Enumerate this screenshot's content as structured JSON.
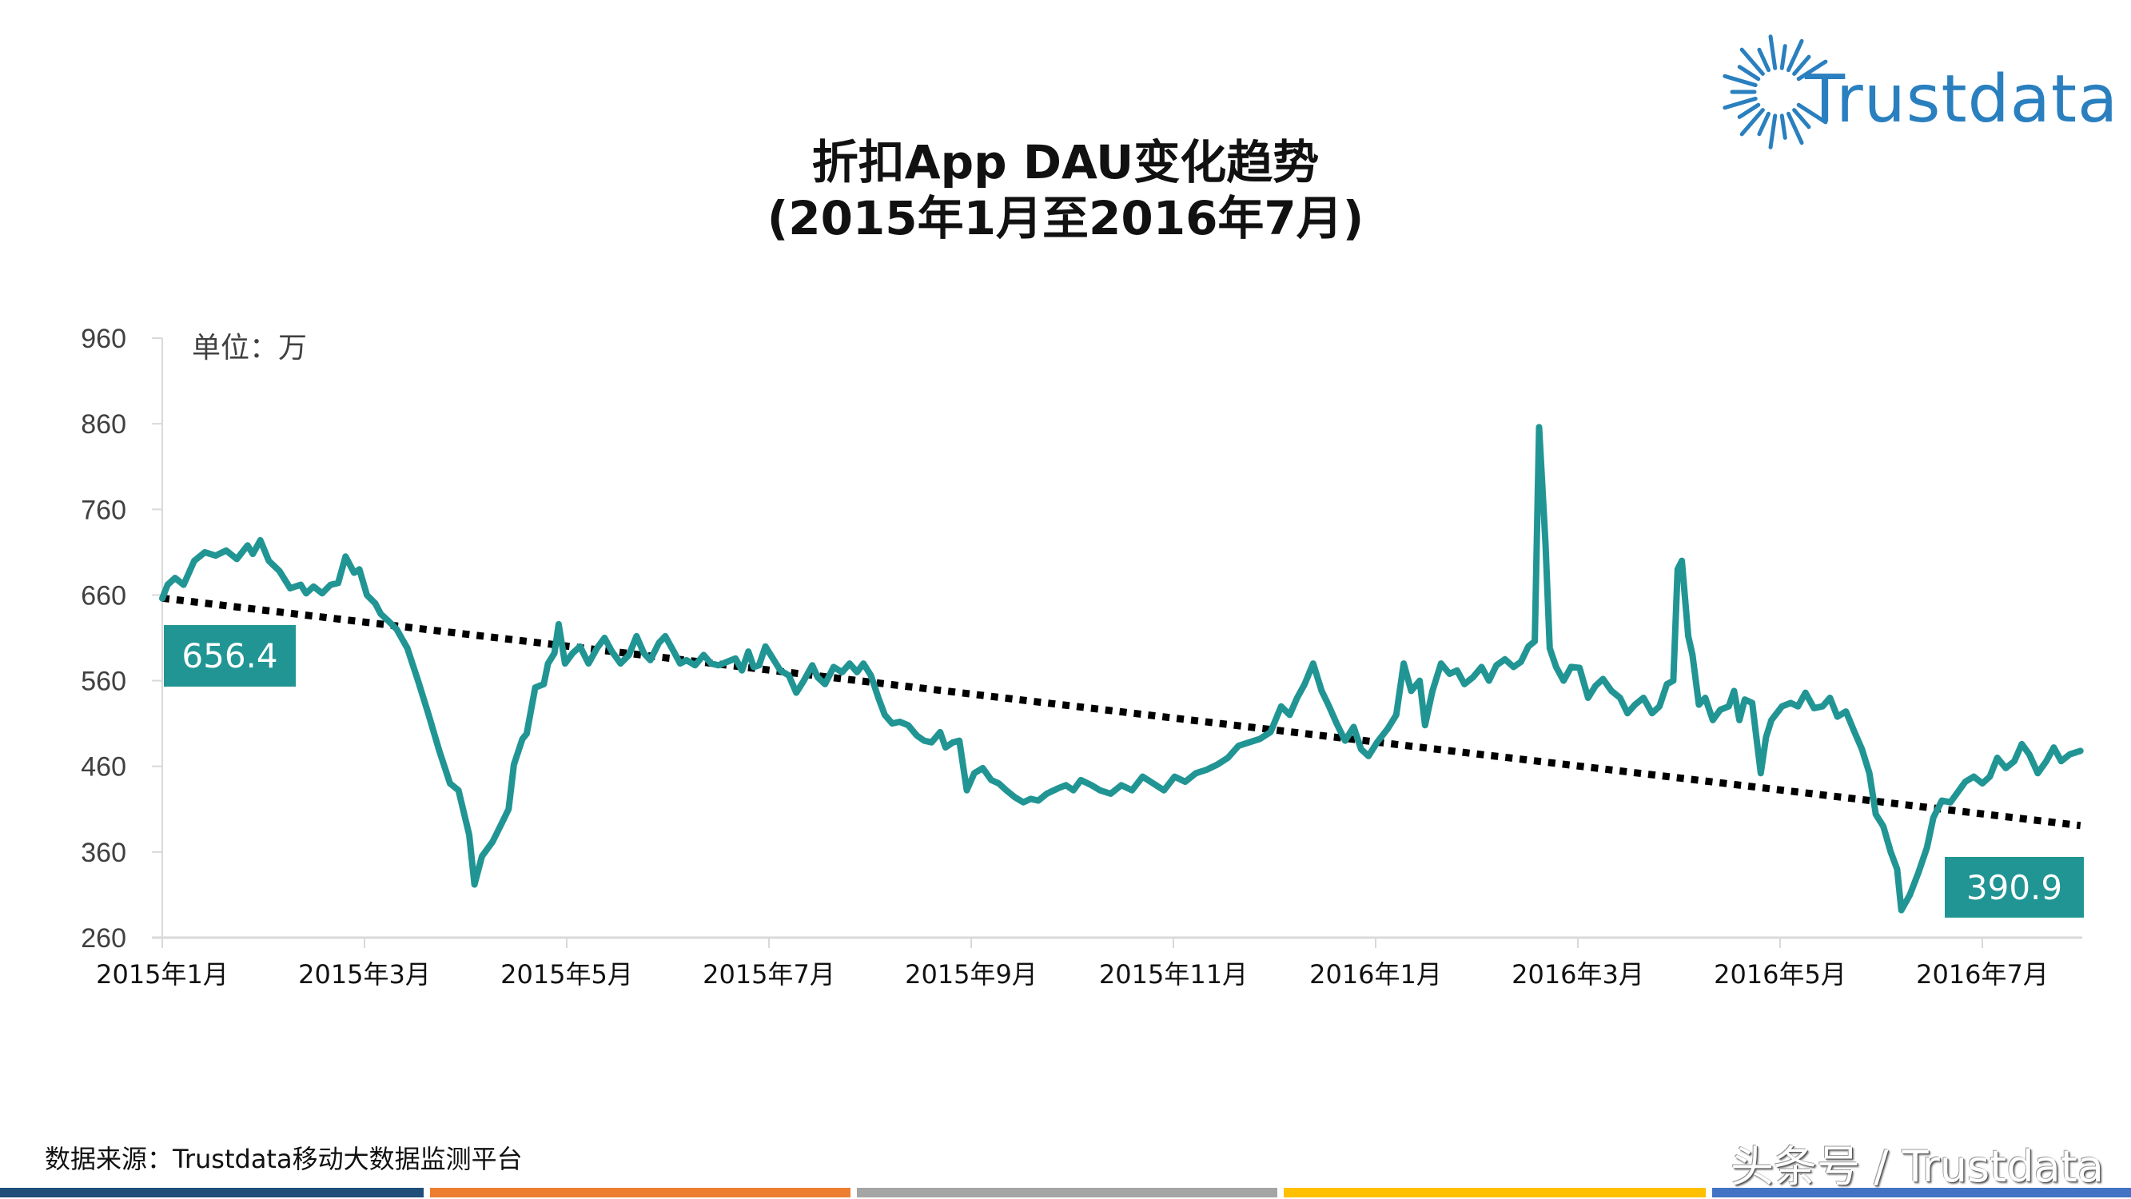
{
  "title": {
    "line1": "折扣App DAU变化趋势",
    "line2": "(2015年1月至2016年7月)"
  },
  "logo": {
    "text": "Trustdata",
    "icon": "sunburst-icon",
    "color": "#2a7fbf"
  },
  "unit_label": "单位：万",
  "callouts": {
    "start": {
      "value": "656.4"
    },
    "end": {
      "value": "390.9"
    }
  },
  "footer": {
    "source": "数据来源：Trustdata移动大数据监测平台",
    "watermark": "头条号 / Trustdata",
    "bars": [
      "#1f4e79",
      "#ed7d31",
      "#a5a5a5",
      "#ffc000",
      "#4472c4"
    ]
  },
  "colors": {
    "line": "#219594",
    "trend": "#000000",
    "axis": "#d9d9d9",
    "callout_bg": "#219594"
  },
  "chart_data": {
    "type": "line",
    "title": "折扣App DAU变化趋势 (2015年1月至2016年7月)",
    "xlabel": "",
    "ylabel": "单位：万",
    "ylim": [
      260,
      960
    ],
    "yticks": [
      260,
      360,
      460,
      560,
      660,
      760,
      860,
      960
    ],
    "xticks": [
      "2015年1月",
      "2015年3月",
      "2015年5月",
      "2015年7月",
      "2015年9月",
      "2015年11月",
      "2016年1月",
      "2016年3月",
      "2016年5月",
      "2016年7月"
    ],
    "x_unit": "months since 2015-01-01",
    "grid": false,
    "legend": "none",
    "series": [
      {
        "name": "DAU",
        "points": [
          [
            0.0,
            656
          ],
          [
            0.05,
            672
          ],
          [
            0.12,
            680
          ],
          [
            0.2,
            672
          ],
          [
            0.3,
            700
          ],
          [
            0.4,
            710
          ],
          [
            0.5,
            706
          ],
          [
            0.6,
            712
          ],
          [
            0.7,
            702
          ],
          [
            0.8,
            718
          ],
          [
            0.85,
            708
          ],
          [
            0.92,
            724
          ],
          [
            1.0,
            700
          ],
          [
            1.1,
            688
          ],
          [
            1.2,
            668
          ],
          [
            1.3,
            672
          ],
          [
            1.35,
            662
          ],
          [
            1.42,
            670
          ],
          [
            1.5,
            662
          ],
          [
            1.58,
            672
          ],
          [
            1.65,
            674
          ],
          [
            1.72,
            705
          ],
          [
            1.8,
            686
          ],
          [
            1.85,
            690
          ],
          [
            1.92,
            660
          ],
          [
            2.0,
            650
          ],
          [
            2.05,
            638
          ],
          [
            2.12,
            630
          ],
          [
            2.2,
            620
          ],
          [
            2.3,
            598
          ],
          [
            2.4,
            560
          ],
          [
            2.5,
            520
          ],
          [
            2.6,
            478
          ],
          [
            2.7,
            440
          ],
          [
            2.78,
            432
          ],
          [
            2.88,
            380
          ],
          [
            2.93,
            322
          ],
          [
            3.0,
            355
          ],
          [
            3.1,
            372
          ],
          [
            3.18,
            392
          ],
          [
            3.25,
            410
          ],
          [
            3.3,
            462
          ],
          [
            3.38,
            492
          ],
          [
            3.42,
            498
          ],
          [
            3.5,
            552
          ],
          [
            3.58,
            556
          ],
          [
            3.62,
            580
          ],
          [
            3.68,
            592
          ],
          [
            3.72,
            626
          ],
          [
            3.78,
            580
          ],
          [
            3.85,
            592
          ],
          [
            3.92,
            600
          ],
          [
            4.0,
            580
          ],
          [
            4.08,
            598
          ],
          [
            4.15,
            610
          ],
          [
            4.22,
            594
          ],
          [
            4.3,
            580
          ],
          [
            4.38,
            590
          ],
          [
            4.45,
            612
          ],
          [
            4.52,
            592
          ],
          [
            4.58,
            584
          ],
          [
            4.66,
            604
          ],
          [
            4.72,
            612
          ],
          [
            4.8,
            594
          ],
          [
            4.86,
            580
          ],
          [
            4.92,
            584
          ],
          [
            5.0,
            578
          ],
          [
            5.08,
            590
          ],
          [
            5.15,
            580
          ],
          [
            5.22,
            578
          ],
          [
            5.3,
            582
          ],
          [
            5.38,
            586
          ],
          [
            5.44,
            572
          ],
          [
            5.5,
            594
          ],
          [
            5.55,
            576
          ],
          [
            5.6,
            578
          ],
          [
            5.66,
            600
          ],
          [
            5.72,
            588
          ],
          [
            5.8,
            572
          ],
          [
            5.88,
            566
          ],
          [
            5.95,
            546
          ],
          [
            6.02,
            560
          ],
          [
            6.1,
            578
          ],
          [
            6.15,
            564
          ],
          [
            6.22,
            556
          ],
          [
            6.3,
            576
          ],
          [
            6.38,
            570
          ],
          [
            6.45,
            580
          ],
          [
            6.52,
            570
          ],
          [
            6.58,
            580
          ],
          [
            6.65,
            566
          ],
          [
            6.72,
            540
          ],
          [
            6.78,
            520
          ],
          [
            6.85,
            510
          ],
          [
            6.92,
            512
          ],
          [
            7.0,
            508
          ],
          [
            7.08,
            496
          ],
          [
            7.15,
            490
          ],
          [
            7.22,
            488
          ],
          [
            7.3,
            500
          ],
          [
            7.35,
            482
          ],
          [
            7.42,
            488
          ],
          [
            7.48,
            490
          ],
          [
            7.55,
            432
          ],
          [
            7.62,
            452
          ],
          [
            7.7,
            458
          ],
          [
            7.78,
            444
          ],
          [
            7.85,
            440
          ],
          [
            7.92,
            432
          ],
          [
            8.0,
            424
          ],
          [
            8.08,
            418
          ],
          [
            8.15,
            422
          ],
          [
            8.22,
            420
          ],
          [
            8.3,
            428
          ],
          [
            8.4,
            434
          ],
          [
            8.48,
            438
          ],
          [
            8.55,
            432
          ],
          [
            8.62,
            444
          ],
          [
            8.72,
            438
          ],
          [
            8.8,
            432
          ],
          [
            8.9,
            428
          ],
          [
            9.0,
            438
          ],
          [
            9.1,
            432
          ],
          [
            9.2,
            448
          ],
          [
            9.3,
            440
          ],
          [
            9.4,
            432
          ],
          [
            9.5,
            448
          ],
          [
            9.6,
            442
          ],
          [
            9.7,
            452
          ],
          [
            9.8,
            456
          ],
          [
            9.9,
            462
          ],
          [
            10.0,
            470
          ],
          [
            10.1,
            484
          ],
          [
            10.2,
            488
          ],
          [
            10.3,
            492
          ],
          [
            10.4,
            500
          ],
          [
            10.5,
            530
          ],
          [
            10.58,
            520
          ],
          [
            10.65,
            540
          ],
          [
            10.72,
            556
          ],
          [
            10.8,
            580
          ],
          [
            10.88,
            548
          ],
          [
            10.95,
            530
          ],
          [
            11.02,
            510
          ],
          [
            11.1,
            490
          ],
          [
            11.18,
            506
          ],
          [
            11.25,
            480
          ],
          [
            11.32,
            472
          ],
          [
            11.4,
            488
          ],
          [
            11.5,
            504
          ],
          [
            11.58,
            520
          ],
          [
            11.65,
            580
          ],
          [
            11.72,
            548
          ],
          [
            11.8,
            560
          ],
          [
            11.85,
            508
          ],
          [
            11.92,
            548
          ],
          [
            12.0,
            580
          ],
          [
            12.08,
            568
          ],
          [
            12.15,
            572
          ],
          [
            12.22,
            556
          ],
          [
            12.3,
            564
          ],
          [
            12.38,
            576
          ],
          [
            12.45,
            560
          ],
          [
            12.52,
            578
          ],
          [
            12.6,
            585
          ],
          [
            12.68,
            576
          ],
          [
            12.75,
            582
          ],
          [
            12.82,
            600
          ],
          [
            12.88,
            606
          ],
          [
            12.92,
            856
          ],
          [
            12.98,
            720
          ],
          [
            13.02,
            598
          ],
          [
            13.08,
            576
          ],
          [
            13.15,
            560
          ],
          [
            13.22,
            576
          ],
          [
            13.3,
            575
          ],
          [
            13.38,
            540
          ],
          [
            13.45,
            554
          ],
          [
            13.52,
            562
          ],
          [
            13.6,
            548
          ],
          [
            13.68,
            540
          ],
          [
            13.75,
            522
          ],
          [
            13.82,
            532
          ],
          [
            13.9,
            540
          ],
          [
            13.98,
            522
          ],
          [
            14.05,
            530
          ],
          [
            14.12,
            556
          ],
          [
            14.18,
            560
          ],
          [
            14.22,
            690
          ],
          [
            14.26,
            700
          ],
          [
            14.32,
            612
          ],
          [
            14.36,
            590
          ],
          [
            14.42,
            532
          ],
          [
            14.48,
            540
          ],
          [
            14.55,
            514
          ],
          [
            14.62,
            526
          ],
          [
            14.7,
            530
          ],
          [
            14.75,
            548
          ],
          [
            14.8,
            514
          ],
          [
            14.85,
            538
          ],
          [
            14.92,
            534
          ],
          [
            15.0,
            452
          ],
          [
            15.05,
            494
          ],
          [
            15.1,
            514
          ],
          [
            15.2,
            530
          ],
          [
            15.28,
            534
          ],
          [
            15.35,
            530
          ],
          [
            15.42,
            546
          ],
          [
            15.5,
            528
          ],
          [
            15.58,
            530
          ],
          [
            15.65,
            540
          ],
          [
            15.72,
            518
          ],
          [
            15.8,
            524
          ],
          [
            15.88,
            500
          ],
          [
            15.95,
            480
          ],
          [
            16.02,
            452
          ],
          [
            16.08,
            404
          ],
          [
            16.15,
            390
          ],
          [
            16.22,
            360
          ],
          [
            16.28,
            340
          ],
          [
            16.32,
            292
          ],
          [
            16.4,
            310
          ],
          [
            16.48,
            336
          ],
          [
            16.56,
            365
          ],
          [
            16.62,
            400
          ],
          [
            16.7,
            420
          ],
          [
            16.78,
            418
          ],
          [
            16.85,
            430
          ],
          [
            16.92,
            442
          ],
          [
            17.0,
            448
          ],
          [
            17.08,
            440
          ],
          [
            17.15,
            448
          ],
          [
            17.22,
            470
          ],
          [
            17.3,
            458
          ],
          [
            17.38,
            466
          ],
          [
            17.45,
            486
          ],
          [
            17.52,
            474
          ],
          [
            17.6,
            452
          ],
          [
            17.68,
            466
          ],
          [
            17.75,
            482
          ],
          [
            17.82,
            466
          ],
          [
            17.9,
            474
          ],
          [
            18.0,
            478
          ]
        ]
      }
    ],
    "annotations": [
      {
        "text": "656.4",
        "at": "2015年1月 start"
      },
      {
        "text": "390.9",
        "at": "2016年7月 end"
      }
    ],
    "trendline": {
      "style": "dotted",
      "color": "#000000",
      "start_value": 656.4,
      "end_value": 390.9
    }
  }
}
